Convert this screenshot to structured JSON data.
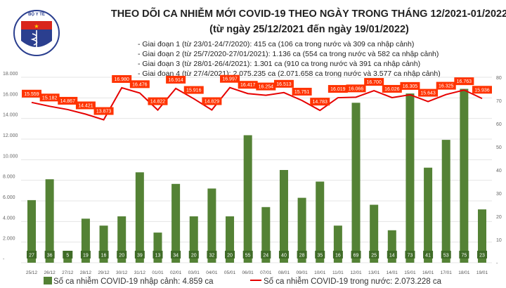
{
  "header": {
    "logo_text": "BỘ Y TẾ - MINISTRY OF HEALTH",
    "title": "THEO DÕI CA NHIỄM MỚI COVID-19 THEO NGÀY TRONG THÁNG 12/2021-01/2022",
    "subtitle": "(từ ngày 25/12/2021 đến ngày 19/01/2022)",
    "notes": [
      "- Giai đoạn 1 (từ 23/01-24/7/2020): 415 ca (106 ca trong nước và 309 ca nhập cảnh)",
      "- Giai đoạn 2 (từ 25/7/2020-27/01/2021): 1.136 ca (554 ca trong nước và 582 ca nhập cảnh)",
      "- Giai đoạn 3 (từ 28/01-26/4/2021): 1.301 ca (910 ca trong nước và 391 ca nhập cảnh)",
      "- Giai đoạn 4 (từ 27/4/2021): 2.075.235 ca (2.071.658 ca trong nước và 3.577 ca nhập cảnh)"
    ]
  },
  "chart_data": {
    "type": "bar+line",
    "categories": [
      "25/12",
      "26/12",
      "27/12",
      "28/12",
      "29/12",
      "30/12",
      "31/12",
      "01/01",
      "02/01",
      "03/01",
      "04/01",
      "05/01",
      "06/01",
      "07/01",
      "08/01",
      "09/01",
      "10/01",
      "11/01",
      "12/01",
      "13/01",
      "14/01",
      "15/01",
      "16/01",
      "17/01",
      "18/01",
      "19/01"
    ],
    "series": [
      {
        "name": "Số ca nhiễm COVID-19 nhập cảnh: 4.859 ca",
        "type": "bar",
        "axis": "right",
        "color": "#548235",
        "values": [
          27,
          36,
          5,
          19,
          16,
          20,
          39,
          13,
          34,
          20,
          32,
          20,
          55,
          24,
          40,
          28,
          35,
          16,
          69,
          25,
          14,
          73,
          41,
          53,
          75,
          23
        ]
      },
      {
        "name": "Số ca nhiễm COVID-19 trong nước: 2.073.228 ca",
        "type": "line",
        "axis": "left",
        "color": "#e60000",
        "values": [
          15559,
          15182,
          14867,
          14421,
          13873,
          16980,
          16476,
          14822,
          16914,
          15916,
          14829,
          16997,
          16417,
          16254,
          16513,
          15751,
          14783,
          16019,
          16066,
          16700,
          16026,
          16305,
          15643,
          16325,
          16763,
          15936
        ]
      }
    ],
    "left_axis": {
      "range": [
        0,
        18000
      ],
      "ticks": [
        "-",
        "2.000",
        "4.000",
        "6.000",
        "8.000",
        "10.000",
        "12.000",
        "14.000",
        "16.000",
        "18.000"
      ]
    },
    "right_axis": {
      "range": [
        0,
        80
      ],
      "ticks": [
        "-",
        "10",
        "20",
        "30",
        "40",
        "50",
        "60",
        "70",
        "80"
      ]
    },
    "grid": true,
    "legend_position": "bottom",
    "label_color": "#ff3300"
  }
}
